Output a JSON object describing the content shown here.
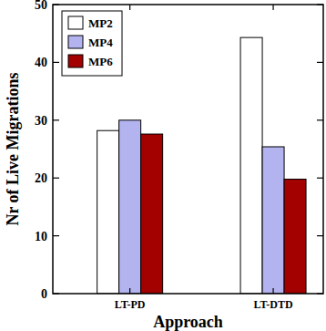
{
  "chart_data": {
    "type": "bar",
    "categories": [
      "LT-PD",
      "LT-DTD"
    ],
    "series": [
      {
        "name": "MP2",
        "color": "#ffffff",
        "values": [
          28.2,
          44.3
        ]
      },
      {
        "name": "MP4",
        "color": "#b3b3ef",
        "values": [
          30.0,
          25.4
        ]
      },
      {
        "name": "MP6",
        "color": "#a30000",
        "values": [
          27.6,
          19.8
        ]
      }
    ],
    "x_label": "Approach",
    "y_label": "Nr of Live Migrations",
    "ylim": [
      0,
      50
    ],
    "yticks": [
      0,
      10,
      20,
      30,
      40,
      50
    ],
    "legend": "upper-left",
    "grid": false
  }
}
